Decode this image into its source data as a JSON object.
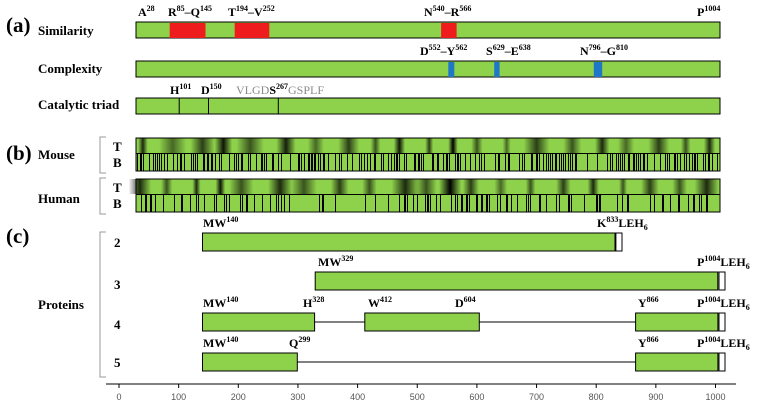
{
  "panels": {
    "a": "(a)",
    "b": "(b)",
    "c": "(c)"
  },
  "colors": {
    "green": "#8ed14b",
    "red": "#ee1c1c",
    "blue": "#1f77c8",
    "grey": "#8a8a8a"
  },
  "rows": {
    "similarity": "Similarity",
    "complexity": "Complexity",
    "catalytic": "Catalytic triad",
    "mouse": "Mouse",
    "human": "Human",
    "proteins": "Proteins",
    "track_t": "T",
    "track_b": "B"
  },
  "similarity": {
    "start": 28,
    "end": 1004,
    "labels": {
      "a28": {
        "base": "A",
        "sup": "28"
      },
      "r85": {
        "base": "R",
        "sup": "85"
      },
      "q145": {
        "base": "Q",
        "sup": "145"
      },
      "t194": {
        "base": "T",
        "sup": "194"
      },
      "v252": {
        "base": "V",
        "sup": "252"
      },
      "n540": {
        "base": "N",
        "sup": "540"
      },
      "r566": {
        "base": "R",
        "sup": "566"
      },
      "p1004": {
        "base": "P",
        "sup": "1004"
      },
      "dash": "–"
    },
    "red_regions": [
      [
        85,
        145
      ],
      [
        194,
        252
      ],
      [
        540,
        566
      ]
    ]
  },
  "complexity": {
    "labels": {
      "d552": {
        "base": "D",
        "sup": "552"
      },
      "y562": {
        "base": "Y",
        "sup": "562"
      },
      "s629": {
        "base": "S",
        "sup": "629"
      },
      "e638": {
        "base": "E",
        "sup": "638"
      },
      "n796": {
        "base": "N",
        "sup": "796"
      },
      "g810": {
        "base": "G",
        "sup": "810"
      }
    },
    "blue_regions": [
      [
        552,
        562
      ],
      [
        629,
        638
      ],
      [
        796,
        810
      ]
    ]
  },
  "catalytic": {
    "h101": {
      "base": "H",
      "sup": "101"
    },
    "d150": {
      "base": "D",
      "sup": "150"
    },
    "s267": {
      "base": "S",
      "sup": "267"
    },
    "motif_pre": "VLGD",
    "motif_post": "GSPLF",
    "sites": [
      101,
      150,
      267
    ]
  },
  "constructs": {
    "c2": {
      "num": "2",
      "mw": {
        "base": "MW",
        "sup": "140"
      },
      "end": {
        "base": "K",
        "sup": "833",
        "tail": "LEH",
        "sub": "6"
      }
    },
    "c3": {
      "num": "3",
      "mw": {
        "base": "MW",
        "sup": "329"
      },
      "end": {
        "base": "P",
        "sup": "1004",
        "tail": "LEH",
        "sub": "6"
      }
    },
    "c4": {
      "num": "4",
      "mw": {
        "base": "MW",
        "sup": "140"
      },
      "h328": {
        "base": "H",
        "sup": "328"
      },
      "w412": {
        "base": "W",
        "sup": "412"
      },
      "d604": {
        "base": "D",
        "sup": "604"
      },
      "y866": {
        "base": "Y",
        "sup": "866"
      },
      "end": {
        "base": "P",
        "sup": "1004",
        "tail": "LEH",
        "sub": "6"
      }
    },
    "c5": {
      "num": "5",
      "mw": {
        "base": "MW",
        "sup": "140"
      },
      "q299": {
        "base": "Q",
        "sup": "299"
      },
      "y866": {
        "base": "Y",
        "sup": "866"
      },
      "end": {
        "base": "P",
        "sup": "1004",
        "tail": "LEH",
        "sub": "6"
      }
    }
  },
  "construct_segments": {
    "c2": [
      [
        140,
        833
      ]
    ],
    "c3": [
      [
        329,
        1004
      ]
    ],
    "c4": [
      [
        140,
        328
      ],
      [
        412,
        604
      ],
      [
        866,
        1004
      ]
    ],
    "c5": [
      [
        140,
        299
      ],
      [
        866,
        1004
      ]
    ]
  },
  "axis": {
    "min": 0,
    "max": 1000,
    "ticks": [
      "0",
      "100",
      "200",
      "300",
      "400",
      "500",
      "600",
      "700",
      "800",
      "900",
      "1000"
    ]
  },
  "heatmap_bands": {
    "mouse_t": [
      [
        40,
        0.8
      ],
      [
        90,
        0.5
      ],
      [
        140,
        0.7
      ],
      [
        175,
        0.9
      ],
      [
        220,
        0.6
      ],
      [
        280,
        0.85
      ],
      [
        330,
        0.5
      ],
      [
        385,
        0.7
      ],
      [
        430,
        0.6
      ],
      [
        470,
        0.9
      ],
      [
        520,
        0.7
      ],
      [
        560,
        1.0
      ],
      [
        600,
        0.6
      ],
      [
        650,
        0.5
      ],
      [
        700,
        0.7
      ],
      [
        760,
        0.6
      ],
      [
        810,
        0.8
      ],
      [
        850,
        0.5
      ],
      [
        905,
        0.7
      ],
      [
        950,
        0.6
      ],
      [
        990,
        0.8
      ]
    ],
    "human_t": [
      [
        35,
        0.8
      ],
      [
        80,
        0.6
      ],
      [
        130,
        0.8
      ],
      [
        170,
        0.9
      ],
      [
        205,
        0.6
      ],
      [
        270,
        0.8
      ],
      [
        310,
        0.6
      ],
      [
        370,
        0.7
      ],
      [
        420,
        0.6
      ],
      [
        480,
        0.8
      ],
      [
        515,
        0.6
      ],
      [
        555,
        1.0
      ],
      [
        590,
        0.7
      ],
      [
        640,
        0.5
      ],
      [
        690,
        0.6
      ],
      [
        745,
        0.7
      ],
      [
        795,
        0.8
      ],
      [
        845,
        0.6
      ],
      [
        890,
        0.7
      ],
      [
        940,
        0.6
      ],
      [
        985,
        0.8
      ]
    ]
  }
}
